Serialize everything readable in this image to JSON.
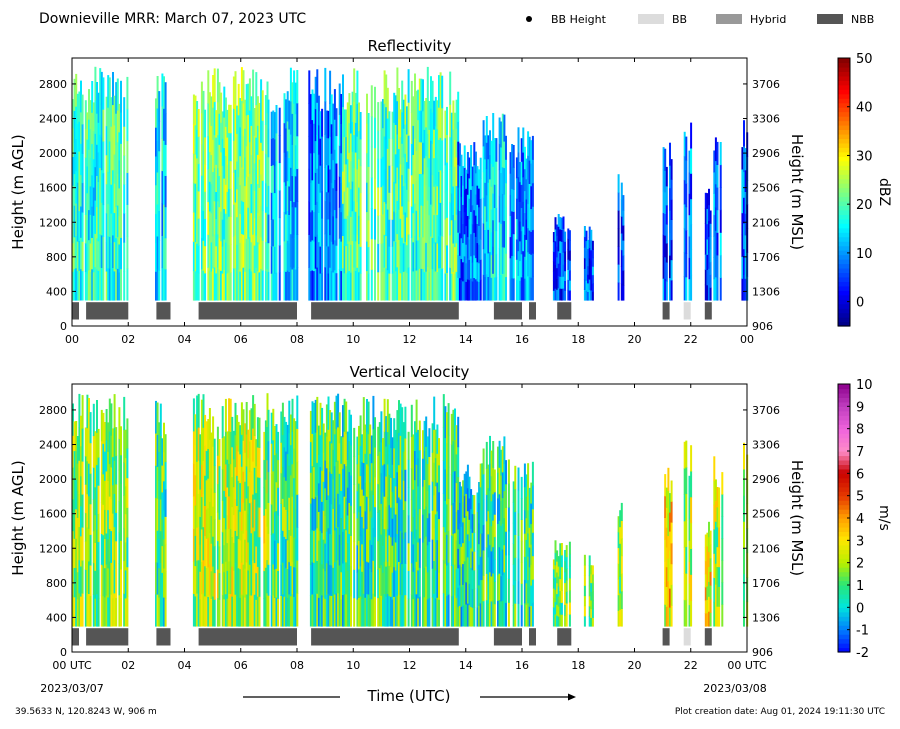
{
  "header": {
    "title": "Downieville MRR:  March 07, 2023 UTC",
    "legend": [
      {
        "label": "BB Height",
        "kind": "dot",
        "color": "#000000"
      },
      {
        "label": "BB",
        "kind": "box",
        "color": "#dcdcdc"
      },
      {
        "label": "Hybrid",
        "kind": "box",
        "color": "#999999"
      },
      {
        "label": "NBB",
        "kind": "box",
        "color": "#555555"
      }
    ]
  },
  "footer": {
    "location": "39.5633 N, 120.8243 W, 906 m",
    "created": "Plot creation date: Aug 01, 2024 19:11:30 UTC",
    "xlabel": "Time (UTC)",
    "start_date": "2023/03/07",
    "end_date": "2023/03/08"
  },
  "chart_data": [
    {
      "type": "heatmap",
      "title": "Reflectivity",
      "xlabel": "Time (UTC)",
      "ylabel": "Height (m AGL)",
      "ylabel_right": "Height (m MSL)",
      "xlim": [
        0,
        24
      ],
      "ylim": [
        0,
        3100
      ],
      "xticks": [
        "00",
        "02",
        "04",
        "06",
        "08",
        "10",
        "12",
        "14",
        "16",
        "18",
        "20",
        "22",
        "00"
      ],
      "xtick_values": [
        0,
        2,
        4,
        6,
        8,
        10,
        12,
        14,
        16,
        18,
        20,
        22,
        24
      ],
      "yticks": [
        0,
        400,
        800,
        1200,
        1600,
        2000,
        2400,
        2800
      ],
      "yticks_right": [
        906,
        1306,
        1706,
        2106,
        2506,
        2906,
        3306,
        3706
      ],
      "colorbar": {
        "label": "dBZ",
        "min": -5,
        "max": 50,
        "ticks": [
          0,
          10,
          20,
          30,
          40,
          50
        ],
        "colormap": "jet"
      },
      "precip_periods": [
        {
          "start": 0.0,
          "end": 1.95,
          "top": 3000,
          "level": 18
        },
        {
          "start": 2.95,
          "end": 3.3,
          "top": 3000,
          "level": 14
        },
        {
          "start": 4.3,
          "end": 6.95,
          "top": 3000,
          "level": 22
        },
        {
          "start": 6.95,
          "end": 8.0,
          "top": 3000,
          "level": 13
        },
        {
          "start": 8.4,
          "end": 9.6,
          "top": 3000,
          "level": 9
        },
        {
          "start": 9.6,
          "end": 13.7,
          "top": 3000,
          "level": 20
        },
        {
          "start": 13.7,
          "end": 14.6,
          "top": 2200,
          "level": 8
        },
        {
          "start": 14.6,
          "end": 15.4,
          "top": 2500,
          "level": 14
        },
        {
          "start": 15.5,
          "end": 16.4,
          "top": 2300,
          "level": 10
        },
        {
          "start": 17.1,
          "end": 17.7,
          "top": 1300,
          "level": 6
        },
        {
          "start": 18.2,
          "end": 18.5,
          "top": 1200,
          "level": 6
        },
        {
          "start": 19.4,
          "end": 19.6,
          "top": 1800,
          "level": 5
        },
        {
          "start": 21.0,
          "end": 21.3,
          "top": 2200,
          "level": 5
        },
        {
          "start": 21.75,
          "end": 22.0,
          "top": 2450,
          "level": 8
        },
        {
          "start": 22.5,
          "end": 22.7,
          "top": 1600,
          "level": 6
        },
        {
          "start": 22.8,
          "end": 23.1,
          "top": 2300,
          "level": 8
        },
        {
          "start": 23.8,
          "end": 24.0,
          "top": 2450,
          "level": 6
        }
      ],
      "bright_band": [
        {
          "start": 0.0,
          "end": 0.25,
          "type": "NBB"
        },
        {
          "start": 0.5,
          "end": 2.0,
          "type": "NBB"
        },
        {
          "start": 3.0,
          "end": 3.5,
          "type": "NBB"
        },
        {
          "start": 4.5,
          "end": 8.0,
          "type": "NBB"
        },
        {
          "start": 8.5,
          "end": 13.75,
          "type": "NBB"
        },
        {
          "start": 15.0,
          "end": 16.0,
          "type": "NBB"
        },
        {
          "start": 16.25,
          "end": 16.5,
          "type": "NBB"
        },
        {
          "start": 17.25,
          "end": 17.75,
          "type": "NBB"
        },
        {
          "start": 21.0,
          "end": 21.25,
          "type": "NBB"
        },
        {
          "start": 21.75,
          "end": 22.0,
          "type": "BB"
        },
        {
          "start": 22.5,
          "end": 22.75,
          "type": "NBB"
        }
      ]
    },
    {
      "type": "heatmap",
      "title": "Vertical Velocity",
      "xlabel": "Time (UTC)",
      "ylabel": "Height (m AGL)",
      "ylabel_right": "Height (m MSL)",
      "xlim": [
        0,
        24
      ],
      "ylim": [
        0,
        3100
      ],
      "xticks": [
        "00 UTC",
        "02",
        "04",
        "06",
        "08",
        "10",
        "12",
        "14",
        "16",
        "18",
        "20",
        "22",
        "00 UTC"
      ],
      "xtick_values": [
        0,
        2,
        4,
        6,
        8,
        10,
        12,
        14,
        16,
        18,
        20,
        22,
        24
      ],
      "yticks": [
        0,
        400,
        800,
        1200,
        1600,
        2000,
        2400,
        2800
      ],
      "yticks_right": [
        906,
        1306,
        1706,
        2106,
        2506,
        2906,
        3306,
        3706
      ],
      "colorbar": {
        "label": "m/s",
        "min": -2,
        "max": 10,
        "ticks": [
          -2,
          -1,
          0,
          1,
          2,
          3,
          4,
          5,
          6,
          7,
          8,
          9,
          10
        ],
        "colormap": "velocity"
      },
      "precip_periods": [
        {
          "start": 0.0,
          "end": 1.95,
          "top": 3000,
          "level": 1.5
        },
        {
          "start": 2.95,
          "end": 3.3,
          "top": 3000,
          "level": 1.0
        },
        {
          "start": 4.3,
          "end": 6.95,
          "top": 3000,
          "level": 2.0
        },
        {
          "start": 6.95,
          "end": 8.0,
          "top": 3000,
          "level": 1.0
        },
        {
          "start": 8.4,
          "end": 9.6,
          "top": 3000,
          "level": 0.8
        },
        {
          "start": 9.6,
          "end": 13.7,
          "top": 3000,
          "level": 0.8
        },
        {
          "start": 13.7,
          "end": 14.6,
          "top": 2200,
          "level": 0.5
        },
        {
          "start": 14.6,
          "end": 15.4,
          "top": 2500,
          "level": 0.8
        },
        {
          "start": 15.5,
          "end": 16.4,
          "top": 2300,
          "level": 0.8
        },
        {
          "start": 17.1,
          "end": 17.7,
          "top": 1300,
          "level": 1.5
        },
        {
          "start": 18.2,
          "end": 18.5,
          "top": 1200,
          "level": 1.5
        },
        {
          "start": 19.4,
          "end": 19.6,
          "top": 1800,
          "level": 1.5
        },
        {
          "start": 21.0,
          "end": 21.3,
          "top": 2200,
          "level": 3.0
        },
        {
          "start": 21.75,
          "end": 22.0,
          "top": 2450,
          "level": 2.0
        },
        {
          "start": 22.5,
          "end": 22.7,
          "top": 1600,
          "level": 3.0
        },
        {
          "start": 22.8,
          "end": 23.1,
          "top": 2300,
          "level": 2.0
        },
        {
          "start": 23.8,
          "end": 24.0,
          "top": 2450,
          "level": 1.5
        }
      ],
      "bright_band": [
        {
          "start": 0.0,
          "end": 0.25,
          "type": "NBB"
        },
        {
          "start": 0.5,
          "end": 2.0,
          "type": "NBB"
        },
        {
          "start": 3.0,
          "end": 3.5,
          "type": "NBB"
        },
        {
          "start": 4.5,
          "end": 8.0,
          "type": "NBB"
        },
        {
          "start": 8.5,
          "end": 13.75,
          "type": "NBB"
        },
        {
          "start": 15.0,
          "end": 16.0,
          "type": "NBB"
        },
        {
          "start": 16.25,
          "end": 16.5,
          "type": "NBB"
        },
        {
          "start": 17.25,
          "end": 17.75,
          "type": "NBB"
        },
        {
          "start": 21.0,
          "end": 21.25,
          "type": "NBB"
        },
        {
          "start": 21.75,
          "end": 22.0,
          "type": "BB"
        },
        {
          "start": 22.5,
          "end": 22.75,
          "type": "NBB"
        }
      ]
    }
  ]
}
